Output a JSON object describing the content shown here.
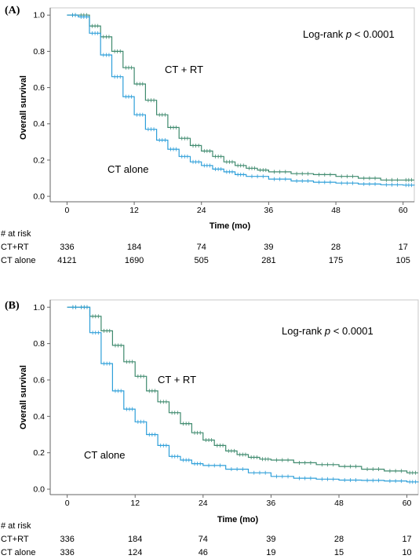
{
  "chart_data": [
    {
      "type": "line",
      "panel_label": "(A)",
      "xlabel": "Time (mo)",
      "ylabel": "Overall survival",
      "xlim": [
        -3,
        62
      ],
      "ylim": [
        -0.03,
        1.04
      ],
      "x_ticks": [
        0,
        12,
        24,
        36,
        48,
        60
      ],
      "y_ticks": [
        0.0,
        0.2,
        0.4,
        0.6,
        0.8,
        1.0
      ],
      "grid": false,
      "annotation": {
        "prefix": "Log-rank ",
        "italic": "p",
        "suffix": " < 0.0001"
      },
      "series": [
        {
          "name": "CT + RT",
          "color": "#3f8a6e",
          "censored": true,
          "x": [
            0,
            2,
            4,
            6,
            8,
            10,
            12,
            14,
            16,
            18,
            20,
            22,
            24,
            26,
            28,
            30,
            32,
            34,
            36,
            40,
            44,
            48,
            52,
            56,
            60,
            62
          ],
          "y": [
            1.0,
            1.0,
            0.94,
            0.88,
            0.8,
            0.71,
            0.62,
            0.53,
            0.45,
            0.38,
            0.32,
            0.28,
            0.25,
            0.22,
            0.19,
            0.17,
            0.155,
            0.145,
            0.135,
            0.125,
            0.12,
            0.11,
            0.1,
            0.09,
            0.09,
            0.09
          ]
        },
        {
          "name": "CT alone",
          "color": "#2e9fd9",
          "censored": true,
          "x": [
            0,
            2,
            4,
            6,
            8,
            10,
            12,
            14,
            16,
            18,
            20,
            22,
            24,
            26,
            28,
            30,
            32,
            36,
            40,
            44,
            48,
            52,
            56,
            60,
            62
          ],
          "y": [
            1.0,
            0.99,
            0.9,
            0.78,
            0.66,
            0.55,
            0.45,
            0.37,
            0.31,
            0.26,
            0.22,
            0.19,
            0.17,
            0.15,
            0.135,
            0.12,
            0.11,
            0.095,
            0.085,
            0.078,
            0.073,
            0.068,
            0.064,
            0.062,
            0.06
          ]
        }
      ],
      "labels": {
        "ct_rt": "CT + RT",
        "ct_alone": "CT alone"
      },
      "risk_table": {
        "header": "# at risk",
        "rows": [
          {
            "label": "CT+RT",
            "values": [
              "336",
              "184",
              "74",
              "39",
              "28",
              "17"
            ]
          },
          {
            "label": "CT alone",
            "values": [
              "4121",
              "1690",
              "505",
              "281",
              "175",
              "105"
            ]
          }
        ]
      }
    },
    {
      "type": "line",
      "panel_label": "(B)",
      "xlabel": "Time (mo)",
      "ylabel": "Overall survival",
      "xlim": [
        -3,
        62
      ],
      "ylim": [
        -0.03,
        1.04
      ],
      "x_ticks": [
        0,
        12,
        24,
        36,
        48,
        60
      ],
      "y_ticks": [
        0.0,
        0.2,
        0.4,
        0.6,
        0.8,
        1.0
      ],
      "grid": false,
      "annotation": {
        "prefix": "Log-rank ",
        "italic": "p",
        "suffix": " < 0.0001"
      },
      "series": [
        {
          "name": "CT + RT",
          "color": "#3f8a6e",
          "censored": true,
          "x": [
            0,
            2,
            4,
            6,
            8,
            10,
            12,
            14,
            16,
            18,
            20,
            22,
            24,
            26,
            28,
            30,
            32,
            34,
            36,
            40,
            44,
            48,
            52,
            56,
            60,
            62
          ],
          "y": [
            1.0,
            1.0,
            0.95,
            0.87,
            0.79,
            0.7,
            0.62,
            0.54,
            0.48,
            0.42,
            0.36,
            0.31,
            0.27,
            0.24,
            0.21,
            0.19,
            0.175,
            0.165,
            0.16,
            0.145,
            0.135,
            0.125,
            0.11,
            0.1,
            0.09,
            0.09
          ]
        },
        {
          "name": "CT alone",
          "color": "#2e9fd9",
          "censored": true,
          "x": [
            0,
            2,
            4,
            6,
            8,
            10,
            12,
            14,
            16,
            18,
            20,
            22,
            24,
            28,
            32,
            36,
            40,
            44,
            48,
            52,
            56,
            60,
            62
          ],
          "y": [
            1.0,
            1.0,
            0.86,
            0.69,
            0.54,
            0.44,
            0.37,
            0.3,
            0.24,
            0.18,
            0.16,
            0.14,
            0.13,
            0.11,
            0.09,
            0.07,
            0.06,
            0.055,
            0.05,
            0.048,
            0.045,
            0.04,
            0.037
          ]
        }
      ],
      "labels": {
        "ct_rt": "CT + RT",
        "ct_alone": "CT alone"
      },
      "risk_table": {
        "header": "# at risk",
        "rows": [
          {
            "label": "CT+RT",
            "values": [
              "336",
              "184",
              "74",
              "39",
              "28",
              "17"
            ]
          },
          {
            "label": "CT alone",
            "values": [
              "336",
              "124",
              "46",
              "19",
              "15",
              "10"
            ]
          }
        ]
      }
    }
  ]
}
